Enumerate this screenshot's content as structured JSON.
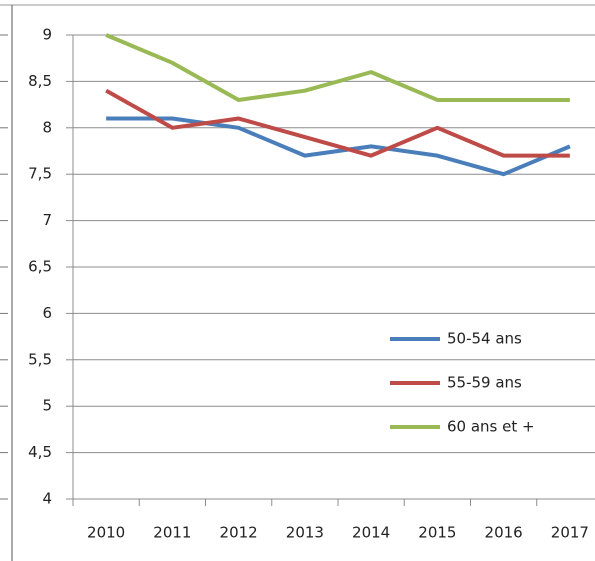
{
  "chart_data": {
    "type": "line",
    "categories": [
      "2010",
      "2011",
      "2012",
      "2013",
      "2014",
      "2015",
      "2016",
      "2017"
    ],
    "series": [
      {
        "name": "50-54 ans",
        "color": "#4a7ebb",
        "values": [
          8.1,
          8.1,
          8.0,
          7.7,
          7.8,
          7.7,
          7.5,
          7.8
        ]
      },
      {
        "name": "55-59 ans",
        "color": "#be4b48",
        "values": [
          8.4,
          8.0,
          8.1,
          7.9,
          7.7,
          8.0,
          7.7,
          7.7
        ]
      },
      {
        "name": "60 ans et +",
        "color": "#98b954",
        "values": [
          9.0,
          8.7,
          8.3,
          8.4,
          8.6,
          8.3,
          8.3,
          8.3
        ]
      }
    ],
    "ylim": [
      4,
      9
    ],
    "yticks": [
      4,
      {
        "value": 4.5,
        "label": "4,5"
      },
      5,
      {
        "value": 5.5,
        "label": "5,5"
      },
      6,
      {
        "value": 6.5,
        "label": "6,5"
      },
      7,
      {
        "value": 7.5,
        "label": "7,5"
      },
      8,
      {
        "value": 8.5,
        "label": "8,5"
      },
      9
    ],
    "grid": true,
    "legend": "right"
  }
}
